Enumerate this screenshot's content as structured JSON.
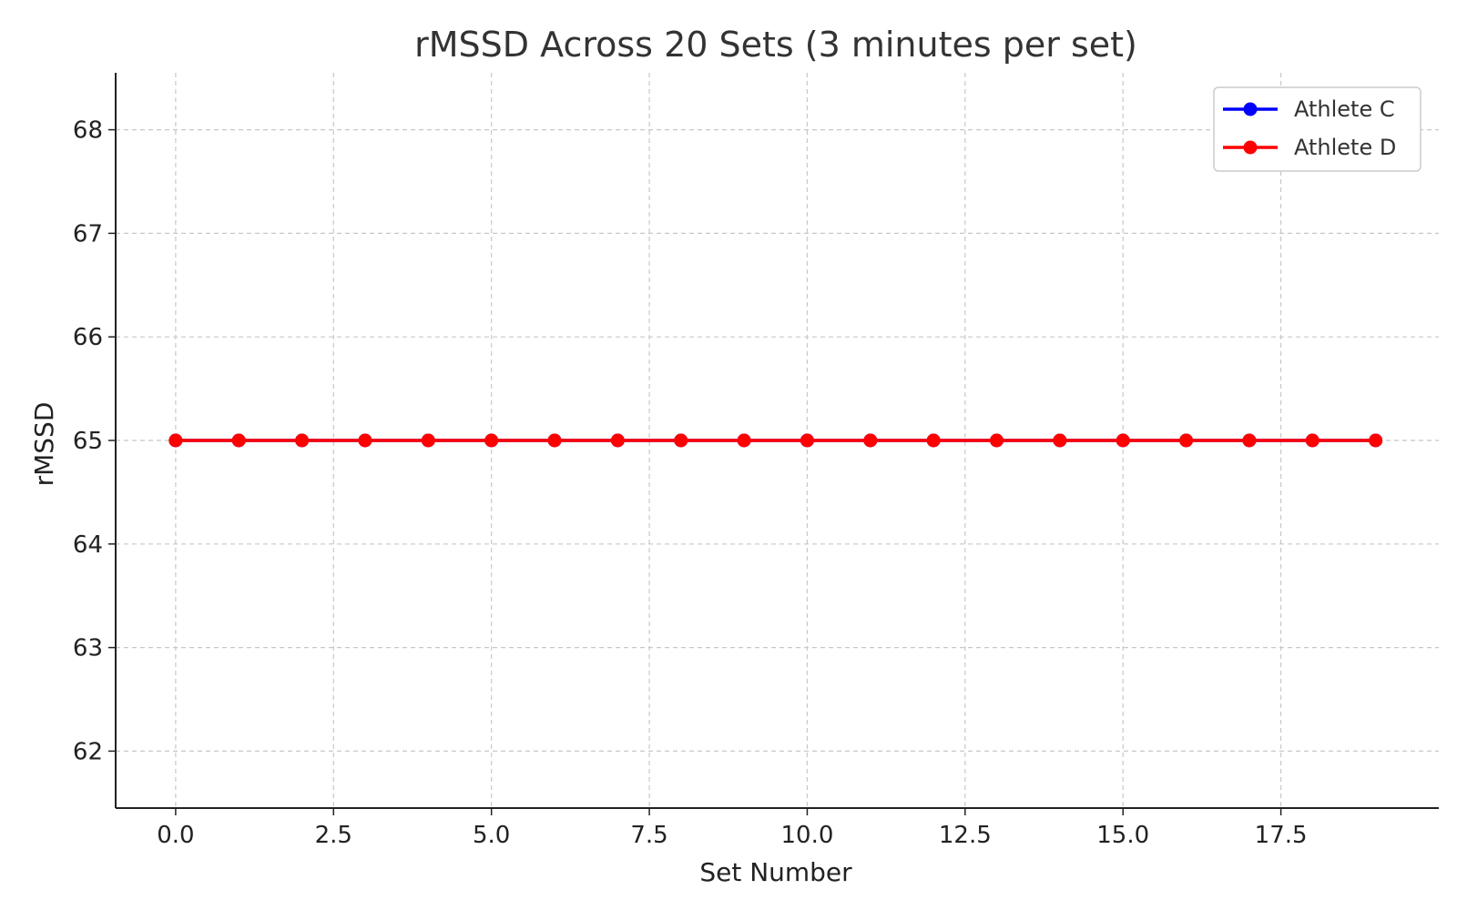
{
  "chart_data": {
    "type": "line",
    "title": "rMSSD Across 20 Sets (3 minutes per set)",
    "xlabel": "Set Number",
    "ylabel": "rMSSD",
    "xlim": [
      -0.95,
      20.0
    ],
    "ylim": [
      61.45,
      68.55
    ],
    "x_ticks": [
      0,
      2.5,
      5,
      7.5,
      10,
      12.5,
      15,
      17.5
    ],
    "x_tick_labels": [
      "0.0",
      "2.5",
      "5.0",
      "7.5",
      "10.0",
      "12.5",
      "15.0",
      "17.5"
    ],
    "y_ticks": [
      62,
      63,
      64,
      65,
      66,
      67,
      68
    ],
    "y_tick_labels": [
      "62",
      "63",
      "64",
      "65",
      "66",
      "67",
      "68"
    ],
    "grid": true,
    "legend_position": "top-right",
    "x": [
      0,
      1,
      2,
      3,
      4,
      5,
      6,
      7,
      8,
      9,
      10,
      11,
      12,
      13,
      14,
      15,
      16,
      17,
      18,
      19
    ],
    "series": [
      {
        "name": "Athlete C",
        "color": "#0000ff",
        "marker": "circle",
        "values": [
          65,
          65,
          65,
          65,
          65,
          65,
          65,
          65,
          65,
          65,
          65,
          65,
          65,
          65,
          65,
          65,
          65,
          65,
          65,
          65
        ]
      },
      {
        "name": "Athlete D",
        "color": "#ff0000",
        "marker": "circle",
        "values": [
          65,
          65,
          65,
          65,
          65,
          65,
          65,
          65,
          65,
          65,
          65,
          65,
          65,
          65,
          65,
          65,
          65,
          65,
          65,
          65
        ]
      }
    ]
  }
}
